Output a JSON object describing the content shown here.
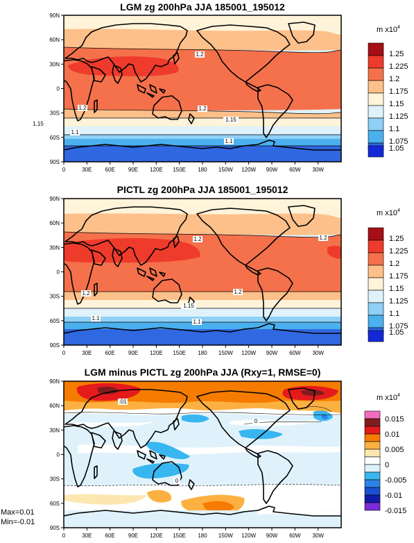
{
  "chart_data": [
    {
      "type": "heatmap",
      "title": "LGM zg 200hPa JJA 185001_195012",
      "unit_label": "m x10",
      "unit_exp": "4",
      "colorbar": {
        "labels": [
          "1.25",
          "1.225",
          "1.2",
          "1.175",
          "1.15",
          "1.125",
          "1.1",
          "1.075",
          "1.05"
        ],
        "colors": [
          "#a50f15",
          "#ef3b2c",
          "#f4714c",
          "#fdc08a",
          "#fff3d9",
          "#dff2fb",
          "#8fd0f5",
          "#4bb0ee",
          "#2f68e0",
          "#1428d8"
        ]
      },
      "lat_ticks": [
        "90N",
        "60N",
        "30N",
        "0",
        "30S",
        "60S",
        "90S"
      ],
      "lon_ticks": [
        "0",
        "30E",
        "60E",
        "90E",
        "120E",
        "150E",
        "180",
        "150W",
        "120W",
        "90W",
        "60W",
        "30W"
      ],
      "contour_labels": [
        "1.2",
        "1.2",
        "1.2",
        "1.15",
        "1.15",
        "1.1",
        "1.1"
      ]
    },
    {
      "type": "heatmap",
      "title": "PICTL zg 200hPa JJA 185001_195012",
      "unit_label": "m x10",
      "unit_exp": "4",
      "colorbar": {
        "labels": [
          "1.25",
          "1.225",
          "1.2",
          "1.175",
          "1.15",
          "1.125",
          "1.1",
          "1.075",
          "1.05"
        ],
        "colors": [
          "#a50f15",
          "#ef3b2c",
          "#f4714c",
          "#fdc08a",
          "#fff3d9",
          "#dff2fb",
          "#8fd0f5",
          "#4bb0ee",
          "#2f68e0",
          "#1428d8"
        ]
      },
      "lat_ticks": [
        "90N",
        "60N",
        "30N",
        "0",
        "30S",
        "60S",
        "90S"
      ],
      "lon_ticks": [
        "0",
        "30E",
        "60E",
        "90E",
        "120E",
        "150E",
        "180",
        "150W",
        "120W",
        "90W",
        "60W",
        "30W"
      ],
      "contour_labels": [
        "1.2",
        "1.2",
        "1.2",
        "1.2",
        "1.15",
        "1.1",
        "1.1"
      ]
    },
    {
      "type": "heatmap",
      "title": "LGM minus PICTL zg 200hPa JJA (Rxy=1, RMSE=0)",
      "unit_label": "m x10",
      "unit_exp": "4",
      "colorbar": {
        "labels": [
          "0.015",
          "0.01",
          "0.005",
          "0",
          "-0.005",
          "-0.01",
          "-0.015"
        ],
        "colors": [
          "#f26dbf",
          "#7f1d1d",
          "#e41a1c",
          "#f57c00",
          "#fdb042",
          "#fde7b0",
          "#ffffff",
          "#dff2fb",
          "#38b6f0",
          "#2c82e6",
          "#1c4fcf",
          "#101ca8",
          "#7b2cd6"
        ]
      },
      "lat_ticks": [
        "90N",
        "60N",
        "30N",
        "0",
        "30S",
        "60S",
        "90S"
      ],
      "lon_ticks": [
        "0",
        "30E",
        "60E",
        "90E",
        "120E",
        "150E",
        "180",
        "150W",
        "120W",
        "90W",
        "60W",
        "30W"
      ],
      "contour_labels": [
        ".01",
        "0",
        "0"
      ],
      "stats": {
        "max": "Max=0.01",
        "min": "Min=-0.01"
      }
    }
  ]
}
